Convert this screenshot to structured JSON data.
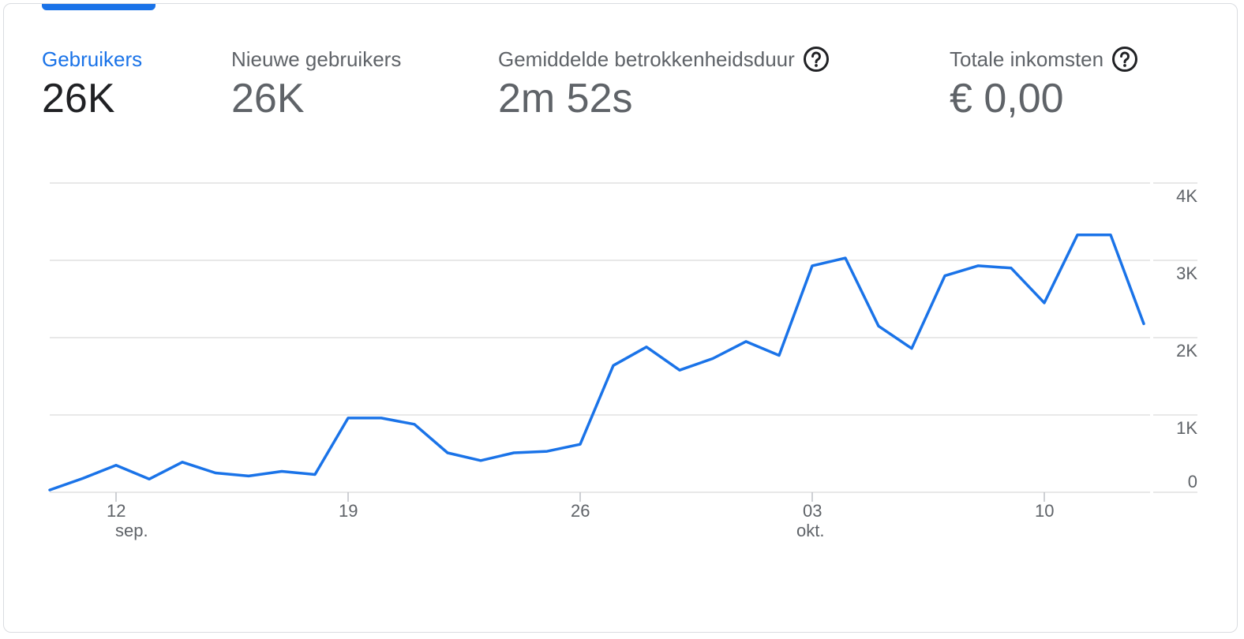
{
  "metrics": [
    {
      "label": "Gebruikers",
      "value": "26K",
      "active": true,
      "help": false
    },
    {
      "label": "Nieuwe gebruikers",
      "value": "26K",
      "active": false,
      "help": false
    },
    {
      "label": "Gemiddelde betrokkenheidsduur",
      "value": "2m 52s",
      "active": false,
      "help": true
    },
    {
      "label": "Totale inkomsten",
      "value": "€ 0,00",
      "active": false,
      "help": true
    }
  ],
  "icons": {
    "help": "help-circle-icon"
  },
  "colors": {
    "accent": "#1a73e8",
    "grid": "#e0e0e0",
    "text": "#5f6368"
  },
  "chart_data": {
    "type": "line",
    "series": [
      {
        "values": [
          30,
          180,
          350,
          170,
          390,
          250,
          210,
          270,
          230,
          960,
          960,
          880,
          510,
          410,
          510,
          530,
          620,
          1640,
          1880,
          1580,
          1730,
          1950,
          1770,
          2930,
          3030,
          2150,
          1860,
          2800,
          2930,
          2900,
          2450,
          3330,
          3330,
          2180
        ]
      }
    ],
    "x_ticks": [
      {
        "index": 2,
        "label": "12",
        "sublabel": "sep."
      },
      {
        "index": 9,
        "label": "19",
        "sublabel": ""
      },
      {
        "index": 16,
        "label": "26",
        "sublabel": ""
      },
      {
        "index": 23,
        "label": "03",
        "sublabel": "okt."
      },
      {
        "index": 30,
        "label": "10",
        "sublabel": ""
      }
    ],
    "y_ticks": [
      {
        "value": 0,
        "label": "0"
      },
      {
        "value": 1000,
        "label": "1K"
      },
      {
        "value": 2000,
        "label": "2K"
      },
      {
        "value": 3000,
        "label": "3K"
      },
      {
        "value": 4000,
        "label": "4K"
      }
    ],
    "ylim": [
      0,
      4000
    ],
    "grid": true,
    "y_axis_side": "right"
  }
}
